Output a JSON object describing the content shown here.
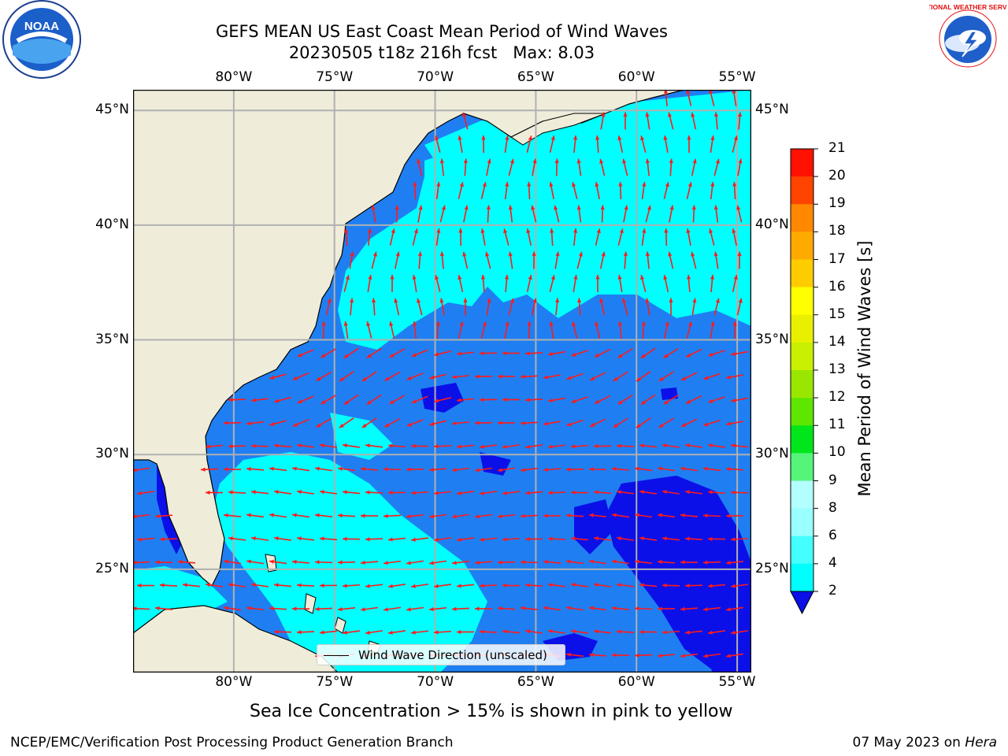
{
  "title": {
    "line1": "GEFS MEAN US East Coast Mean Period of Wind Waves",
    "line2": "20230505 t18z 216h fcst   Max: 8.03"
  },
  "map": {
    "lon_labels": [
      "80°W",
      "75°W",
      "70°W",
      "65°W",
      "60°W",
      "55°W"
    ],
    "lat_labels": [
      "45°N",
      "40°N",
      "35°N",
      "30°N",
      "25°N"
    ],
    "legend_label": "Wind Wave Direction (unscaled)",
    "colors": {
      "land": "#efedda",
      "ocean_low": "#1f7ff2",
      "ocean_mid": "#00ffff",
      "ocean_deep": "#0b10e8",
      "arrow": "#ff1a1a",
      "grid": "#b0b0b0"
    }
  },
  "colorbar": {
    "label": "Mean Period of Wind Waves [s]",
    "ticks": [
      "2",
      "4",
      "6",
      "8",
      "9",
      "10",
      "11",
      "12",
      "13",
      "14",
      "15",
      "16",
      "17",
      "18",
      "19",
      "20",
      "21"
    ],
    "colors": [
      "#1f7ff2",
      "#00ffff",
      "#44ffff",
      "#99ffff",
      "#b3ffff",
      "#55f57a",
      "#00e61a",
      "#5fe600",
      "#9ae600",
      "#c8f000",
      "#e8f000",
      "#ffff00",
      "#ffcc00",
      "#ffaa00",
      "#ff8800",
      "#ff4400",
      "#ff1100"
    ],
    "under_color": "#0b10e8"
  },
  "logos": {
    "noaa_text": "NOAA",
    "noaa_icon": "noaa-logo",
    "nws_text": "NATIONAL WEATHER SERVICE",
    "nws_icon": "nws-logo"
  },
  "subtitle": "Sea Ice Concentration > 15% is shown in pink to yellow",
  "footer": {
    "left": "NCEP/EMC/Verification Post Processing Product Generation Branch",
    "right_date": "07 May 2023 on ",
    "right_machine": "Hera"
  }
}
